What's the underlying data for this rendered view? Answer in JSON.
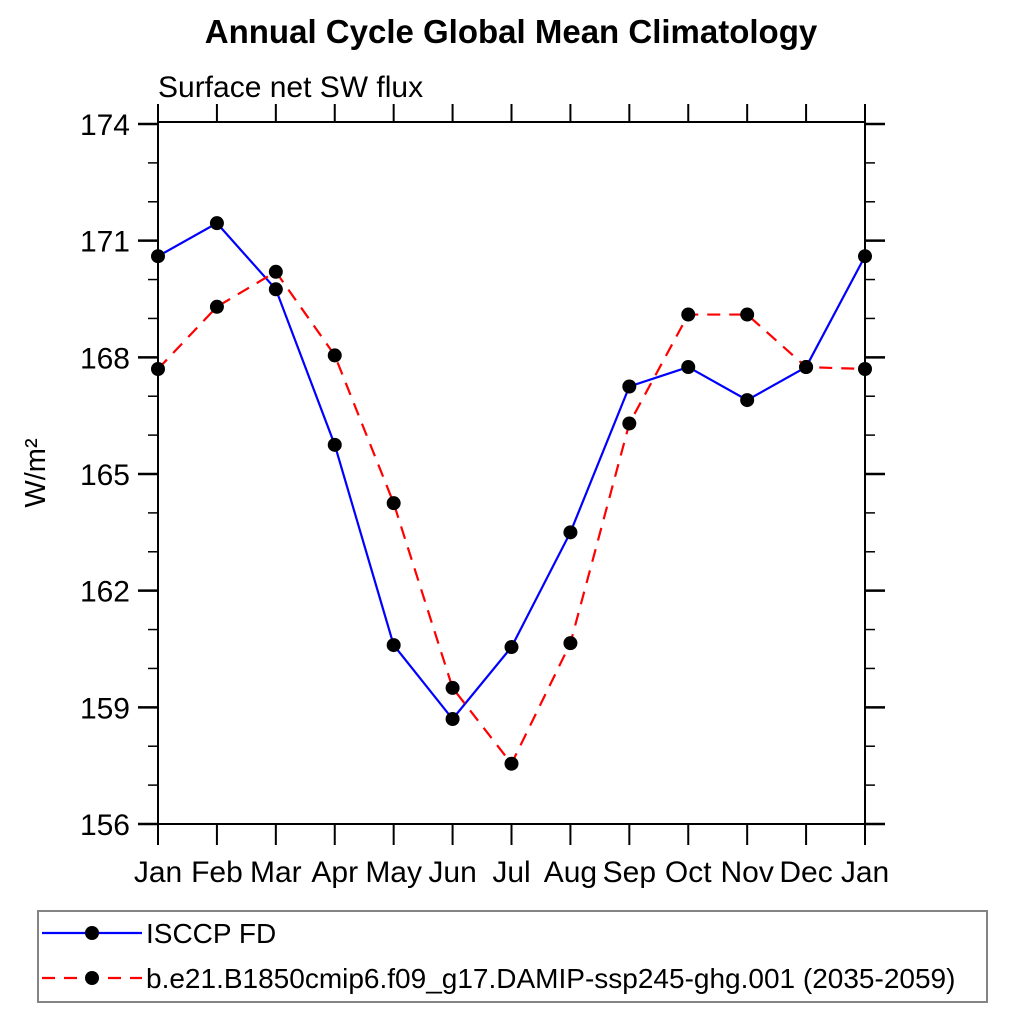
{
  "chart_data": {
    "type": "line",
    "title": "Annual Cycle Global Mean Climatology",
    "subtitle": "Surface net SW flux",
    "xlabel": "",
    "ylabel": "W/m²",
    "categories": [
      "Jan",
      "Feb",
      "Mar",
      "Apr",
      "May",
      "Jun",
      "Jul",
      "Aug",
      "Sep",
      "Oct",
      "Nov",
      "Dec",
      "Jan"
    ],
    "ylim": [
      156,
      174
    ],
    "yticks_major": [
      156,
      159,
      162,
      165,
      168,
      171,
      174
    ],
    "ytick_minor_step": 1,
    "grid": false,
    "legend_position": "bottom-left",
    "axis_color": "#000000",
    "marker_color": "#000000",
    "series": [
      {
        "name": "ISCCP FD",
        "color": "#0000ff",
        "line_style": "solid",
        "marker": "filled-circle",
        "values": [
          170.6,
          171.45,
          169.75,
          165.75,
          160.6,
          158.7,
          160.55,
          163.5,
          167.25,
          167.75,
          166.9,
          167.75,
          170.6
        ]
      },
      {
        "name": "b.e21.B1850cmip6.f09_g17.DAMIP-ssp245-ghg.001 (2035-2059)",
        "color": "#ff0000",
        "line_style": "dashed",
        "marker": "filled-circle",
        "values": [
          167.7,
          169.3,
          170.2,
          168.05,
          164.25,
          159.5,
          157.55,
          160.65,
          166.3,
          169.1,
          169.1,
          167.75,
          167.7
        ]
      }
    ]
  }
}
